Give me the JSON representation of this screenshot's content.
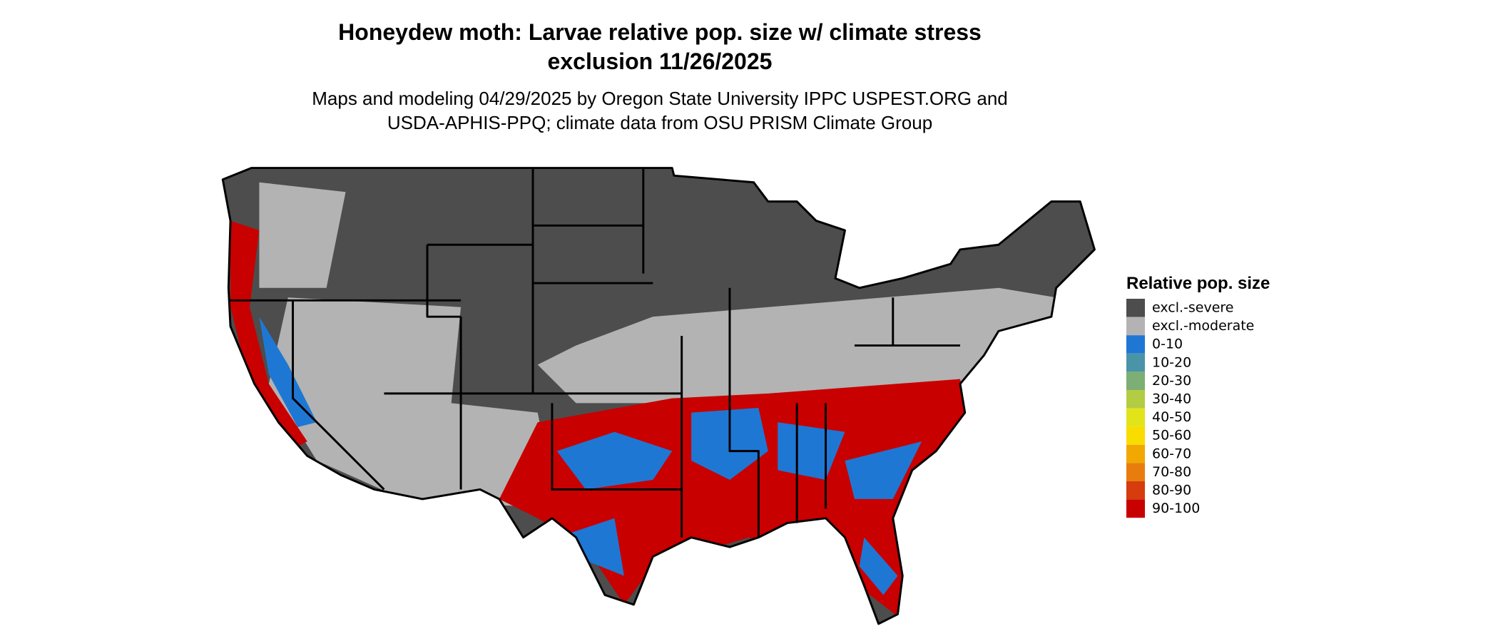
{
  "map": {
    "title": [
      "Honeydew moth: Larvae relative pop. size w/ climate stress",
      "exclusion 11/26/2025"
    ],
    "subtitle": [
      "Maps and modeling 04/29/2025 by Oregon State University IPPC USPEST.ORG and",
      "USDA-APHIS-PPQ; climate data from OSU PRISM Climate Group"
    ],
    "legend": {
      "title": "Relative pop. size",
      "items": [
        {
          "label": "excl.-severe",
          "color": "#4d4d4d"
        },
        {
          "label": "excl.-moderate",
          "color": "#b3b3b3"
        },
        {
          "label": "0-10",
          "color": "#1f77d4"
        },
        {
          "label": "10-20",
          "color": "#4a94a8"
        },
        {
          "label": "20-30",
          "color": "#7dae74"
        },
        {
          "label": "30-40",
          "color": "#b2cc44"
        },
        {
          "label": "40-50",
          "color": "#e2e41a"
        },
        {
          "label": "50-60",
          "color": "#f9dc00"
        },
        {
          "label": "60-70",
          "color": "#f1a800"
        },
        {
          "label": "70-80",
          "color": "#e87d0e"
        },
        {
          "label": "80-90",
          "color": "#d63c0c"
        },
        {
          "label": "90-100",
          "color": "#c80000"
        }
      ]
    }
  }
}
